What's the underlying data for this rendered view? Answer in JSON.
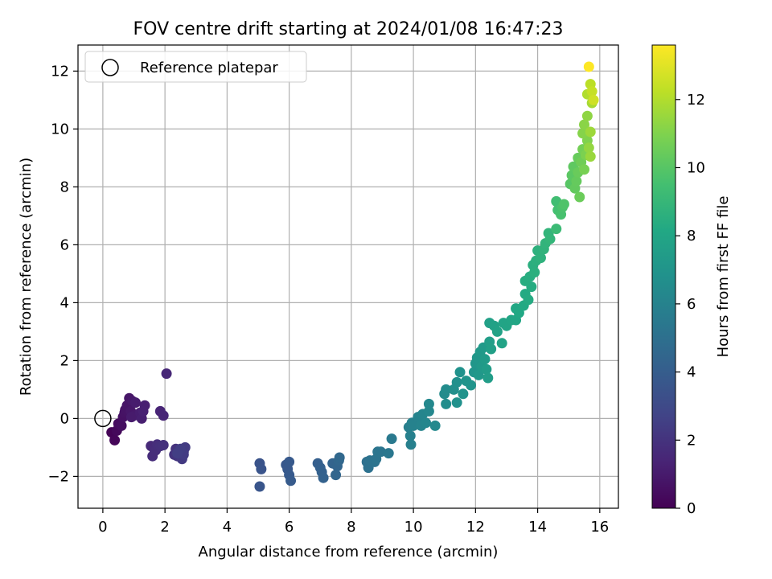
{
  "chart_data": {
    "type": "scatter",
    "title": "FOV centre drift starting at 2024/01/08 16:47:23",
    "xlabel": "Angular distance from reference (arcmin)",
    "ylabel": "Rotation from reference (arcmin)",
    "xlim": [
      -0.8,
      16.6
    ],
    "ylim": [
      -3.1,
      12.9
    ],
    "xticks": [
      0,
      2,
      4,
      6,
      8,
      10,
      12,
      14,
      16
    ],
    "yticks": [
      -2,
      0,
      2,
      4,
      6,
      8,
      10,
      12
    ],
    "grid": true,
    "legend": {
      "position": "upper-left",
      "entries": [
        {
          "label": "Reference platepar",
          "marker": "open-circle"
        }
      ]
    },
    "reference_point": {
      "x": 0,
      "y": 0
    },
    "colorbar": {
      "label": "Hours from first FF file",
      "colormap": "viridis",
      "min": 0,
      "max": 13.6,
      "ticks": [
        0,
        2,
        4,
        6,
        8,
        10,
        12
      ]
    },
    "points": [
      {
        "x": 0.28,
        "y": -0.48,
        "t": 0.1
      },
      {
        "x": 0.38,
        "y": -0.75,
        "t": 0.2
      },
      {
        "x": 0.45,
        "y": -0.42,
        "t": 0.3
      },
      {
        "x": 0.5,
        "y": -0.18,
        "t": 0.4
      },
      {
        "x": 0.6,
        "y": -0.25,
        "t": 0.5
      },
      {
        "x": 0.65,
        "y": 0.05,
        "t": 0.6
      },
      {
        "x": 0.7,
        "y": 0.2,
        "t": 0.65
      },
      {
        "x": 0.72,
        "y": 0.3,
        "t": 0.7
      },
      {
        "x": 0.78,
        "y": 0.45,
        "t": 0.75
      },
      {
        "x": 0.85,
        "y": 0.7,
        "t": 0.8
      },
      {
        "x": 0.9,
        "y": 0.25,
        "t": 0.85
      },
      {
        "x": 0.95,
        "y": 0.6,
        "t": 0.9
      },
      {
        "x": 1.0,
        "y": 0.1,
        "t": 0.95
      },
      {
        "x": 0.92,
        "y": 0.05,
        "t": 1.0
      },
      {
        "x": 1.05,
        "y": 0.55,
        "t": 1.05
      },
      {
        "x": 1.2,
        "y": 0.2,
        "t": 1.1
      },
      {
        "x": 1.25,
        "y": 0.0,
        "t": 1.15
      },
      {
        "x": 1.35,
        "y": 0.45,
        "t": 1.2
      },
      {
        "x": 1.3,
        "y": 0.25,
        "t": 1.25
      },
      {
        "x": 1.85,
        "y": 0.25,
        "t": 1.4
      },
      {
        "x": 1.95,
        "y": 0.1,
        "t": 1.45
      },
      {
        "x": 2.05,
        "y": 1.55,
        "t": 1.5
      },
      {
        "x": 1.55,
        "y": -0.95,
        "t": 1.6
      },
      {
        "x": 1.65,
        "y": -1.05,
        "t": 1.65
      },
      {
        "x": 1.6,
        "y": -1.3,
        "t": 1.7
      },
      {
        "x": 1.7,
        "y": -1.1,
        "t": 1.75
      },
      {
        "x": 1.75,
        "y": -0.9,
        "t": 1.8
      },
      {
        "x": 1.85,
        "y": -0.95,
        "t": 1.85
      },
      {
        "x": 1.95,
        "y": -0.92,
        "t": 1.9
      },
      {
        "x": 2.35,
        "y": -1.05,
        "t": 2.0
      },
      {
        "x": 2.3,
        "y": -1.25,
        "t": 2.05
      },
      {
        "x": 2.4,
        "y": -1.3,
        "t": 2.1
      },
      {
        "x": 2.45,
        "y": -1.1,
        "t": 2.15
      },
      {
        "x": 2.5,
        "y": -1.2,
        "t": 2.2
      },
      {
        "x": 2.55,
        "y": -1.4,
        "t": 2.25
      },
      {
        "x": 2.6,
        "y": -1.15,
        "t": 2.3
      },
      {
        "x": 2.65,
        "y": -1.0,
        "t": 2.35
      },
      {
        "x": 2.6,
        "y": -1.25,
        "t": 2.4
      },
      {
        "x": 2.5,
        "y": -1.05,
        "t": 2.45
      },
      {
        "x": 2.4,
        "y": -1.2,
        "t": 2.5
      },
      {
        "x": 5.05,
        "y": -1.55,
        "t": 3.5
      },
      {
        "x": 5.1,
        "y": -1.75,
        "t": 3.55
      },
      {
        "x": 5.05,
        "y": -2.35,
        "t": 3.6
      },
      {
        "x": 5.9,
        "y": -1.6,
        "t": 3.7
      },
      {
        "x": 5.95,
        "y": -1.75,
        "t": 3.75
      },
      {
        "x": 6.0,
        "y": -1.5,
        "t": 3.8
      },
      {
        "x": 6.0,
        "y": -1.95,
        "t": 3.85
      },
      {
        "x": 6.05,
        "y": -2.15,
        "t": 3.9
      },
      {
        "x": 6.92,
        "y": -1.55,
        "t": 4.1
      },
      {
        "x": 7.0,
        "y": -1.7,
        "t": 4.15
      },
      {
        "x": 7.05,
        "y": -1.85,
        "t": 4.2
      },
      {
        "x": 7.1,
        "y": -2.05,
        "t": 4.25
      },
      {
        "x": 7.4,
        "y": -1.55,
        "t": 4.35
      },
      {
        "x": 7.55,
        "y": -1.65,
        "t": 4.4
      },
      {
        "x": 7.5,
        "y": -1.95,
        "t": 4.45
      },
      {
        "x": 7.6,
        "y": -1.45,
        "t": 4.5
      },
      {
        "x": 7.62,
        "y": -1.35,
        "t": 4.55
      },
      {
        "x": 8.5,
        "y": -1.5,
        "t": 5.0
      },
      {
        "x": 8.55,
        "y": -1.7,
        "t": 5.05
      },
      {
        "x": 8.6,
        "y": -1.45,
        "t": 5.1
      },
      {
        "x": 8.75,
        "y": -1.5,
        "t": 5.15
      },
      {
        "x": 8.8,
        "y": -1.4,
        "t": 5.2
      },
      {
        "x": 8.85,
        "y": -1.15,
        "t": 5.25
      },
      {
        "x": 8.95,
        "y": -1.15,
        "t": 5.3
      },
      {
        "x": 9.2,
        "y": -1.2,
        "t": 5.4
      },
      {
        "x": 9.3,
        "y": -0.7,
        "t": 5.5
      },
      {
        "x": 9.85,
        "y": -0.3,
        "t": 5.8
      },
      {
        "x": 9.9,
        "y": -0.6,
        "t": 5.85
      },
      {
        "x": 9.92,
        "y": -0.9,
        "t": 5.9
      },
      {
        "x": 9.95,
        "y": -0.15,
        "t": 5.95
      },
      {
        "x": 10.0,
        "y": -0.25,
        "t": 6.0
      },
      {
        "x": 10.15,
        "y": 0.05,
        "t": 6.05
      },
      {
        "x": 10.25,
        "y": -0.25,
        "t": 6.1
      },
      {
        "x": 10.3,
        "y": 0.15,
        "t": 6.15
      },
      {
        "x": 10.4,
        "y": -0.15,
        "t": 6.2
      },
      {
        "x": 10.5,
        "y": 0.25,
        "t": 6.25
      },
      {
        "x": 10.5,
        "y": 0.5,
        "t": 6.3
      },
      {
        "x": 10.7,
        "y": -0.25,
        "t": 6.35
      },
      {
        "x": 11.0,
        "y": 0.85,
        "t": 6.5
      },
      {
        "x": 11.05,
        "y": 1.0,
        "t": 6.55
      },
      {
        "x": 11.05,
        "y": 0.5,
        "t": 6.6
      },
      {
        "x": 11.3,
        "y": 1.0,
        "t": 6.7
      },
      {
        "x": 11.4,
        "y": 1.25,
        "t": 6.75
      },
      {
        "x": 11.4,
        "y": 0.55,
        "t": 6.8
      },
      {
        "x": 11.5,
        "y": 1.6,
        "t": 6.85
      },
      {
        "x": 11.6,
        "y": 0.85,
        "t": 6.9
      },
      {
        "x": 11.7,
        "y": 1.3,
        "t": 6.95
      },
      {
        "x": 11.85,
        "y": 1.15,
        "t": 7.0
      },
      {
        "x": 11.95,
        "y": 1.6,
        "t": 7.05
      },
      {
        "x": 12.0,
        "y": 1.9,
        "t": 7.1
      },
      {
        "x": 12.05,
        "y": 2.1,
        "t": 7.15
      },
      {
        "x": 12.1,
        "y": 1.5,
        "t": 7.2
      },
      {
        "x": 12.15,
        "y": 2.3,
        "t": 7.25
      },
      {
        "x": 12.2,
        "y": 1.8,
        "t": 7.3
      },
      {
        "x": 12.25,
        "y": 2.45,
        "t": 7.35
      },
      {
        "x": 12.3,
        "y": 2.05,
        "t": 7.4
      },
      {
        "x": 12.35,
        "y": 1.7,
        "t": 7.45
      },
      {
        "x": 12.4,
        "y": 1.4,
        "t": 7.5
      },
      {
        "x": 12.45,
        "y": 2.65,
        "t": 7.55
      },
      {
        "x": 12.5,
        "y": 2.4,
        "t": 7.6
      },
      {
        "x": 12.45,
        "y": 3.3,
        "t": 7.7
      },
      {
        "x": 12.6,
        "y": 3.2,
        "t": 7.75
      },
      {
        "x": 12.7,
        "y": 3.0,
        "t": 7.8
      },
      {
        "x": 12.85,
        "y": 2.6,
        "t": 7.85
      },
      {
        "x": 12.9,
        "y": 3.3,
        "t": 7.9
      },
      {
        "x": 13.0,
        "y": 3.2,
        "t": 7.95
      },
      {
        "x": 13.15,
        "y": 3.4,
        "t": 8.0
      },
      {
        "x": 13.3,
        "y": 3.4,
        "t": 8.05
      },
      {
        "x": 13.3,
        "y": 3.8,
        "t": 8.1
      },
      {
        "x": 13.4,
        "y": 3.65,
        "t": 8.15
      },
      {
        "x": 13.55,
        "y": 3.9,
        "t": 8.2
      },
      {
        "x": 13.6,
        "y": 4.3,
        "t": 8.25
      },
      {
        "x": 13.7,
        "y": 4.1,
        "t": 8.3
      },
      {
        "x": 13.8,
        "y": 4.55,
        "t": 8.35
      },
      {
        "x": 13.6,
        "y": 4.75,
        "t": 8.4
      },
      {
        "x": 13.75,
        "y": 4.9,
        "t": 8.45
      },
      {
        "x": 13.85,
        "y": 5.3,
        "t": 8.5
      },
      {
        "x": 13.9,
        "y": 5.05,
        "t": 8.55
      },
      {
        "x": 13.95,
        "y": 5.45,
        "t": 8.6
      },
      {
        "x": 14.0,
        "y": 5.8,
        "t": 8.65
      },
      {
        "x": 14.1,
        "y": 5.55,
        "t": 8.7
      },
      {
        "x": 14.2,
        "y": 5.85,
        "t": 8.75
      },
      {
        "x": 14.25,
        "y": 6.05,
        "t": 8.8
      },
      {
        "x": 14.35,
        "y": 6.4,
        "t": 8.85
      },
      {
        "x": 14.4,
        "y": 6.2,
        "t": 8.9
      },
      {
        "x": 14.6,
        "y": 6.55,
        "t": 9.2
      },
      {
        "x": 14.6,
        "y": 7.5,
        "t": 9.4
      },
      {
        "x": 14.65,
        "y": 7.2,
        "t": 9.5
      },
      {
        "x": 14.75,
        "y": 7.05,
        "t": 9.6
      },
      {
        "x": 14.8,
        "y": 7.3,
        "t": 9.7
      },
      {
        "x": 14.85,
        "y": 7.4,
        "t": 9.8
      },
      {
        "x": 15.05,
        "y": 8.1,
        "t": 10.0
      },
      {
        "x": 15.1,
        "y": 8.4,
        "t": 10.1
      },
      {
        "x": 15.15,
        "y": 8.7,
        "t": 10.2
      },
      {
        "x": 15.2,
        "y": 7.95,
        "t": 10.3
      },
      {
        "x": 15.25,
        "y": 8.2,
        "t": 10.35
      },
      {
        "x": 15.3,
        "y": 9.0,
        "t": 10.4
      },
      {
        "x": 15.3,
        "y": 8.5,
        "t": 10.45
      },
      {
        "x": 15.35,
        "y": 7.65,
        "t": 10.5
      },
      {
        "x": 15.4,
        "y": 8.85,
        "t": 10.6
      },
      {
        "x": 15.45,
        "y": 9.3,
        "t": 10.7
      },
      {
        "x": 15.5,
        "y": 8.6,
        "t": 10.8
      },
      {
        "x": 15.55,
        "y": 9.1,
        "t": 10.9
      },
      {
        "x": 15.6,
        "y": 9.6,
        "t": 11.0
      },
      {
        "x": 15.45,
        "y": 9.85,
        "t": 11.1
      },
      {
        "x": 15.5,
        "y": 10.15,
        "t": 11.2
      },
      {
        "x": 15.6,
        "y": 10.45,
        "t": 11.3
      },
      {
        "x": 15.65,
        "y": 9.35,
        "t": 11.4
      },
      {
        "x": 15.7,
        "y": 9.05,
        "t": 11.5
      },
      {
        "x": 15.7,
        "y": 9.9,
        "t": 11.6
      },
      {
        "x": 15.75,
        "y": 10.9,
        "t": 11.8
      },
      {
        "x": 15.6,
        "y": 11.2,
        "t": 12.0
      },
      {
        "x": 15.7,
        "y": 11.55,
        "t": 12.2
      },
      {
        "x": 15.75,
        "y": 11.3,
        "t": 12.4
      },
      {
        "x": 15.8,
        "y": 11.0,
        "t": 12.6
      },
      {
        "x": 15.65,
        "y": 12.15,
        "t": 13.6
      }
    ]
  }
}
